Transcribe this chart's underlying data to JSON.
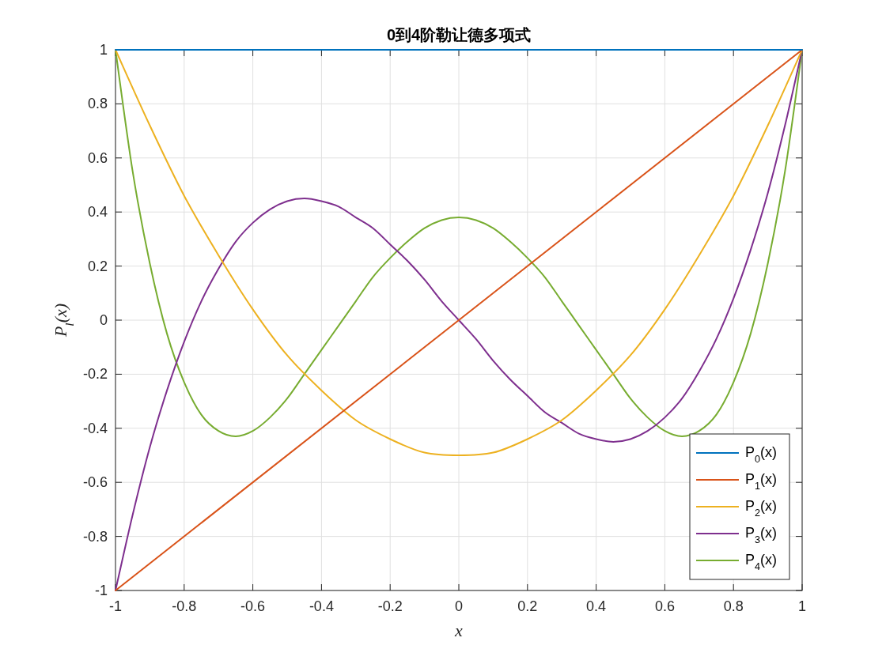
{
  "chart_data": {
    "type": "line",
    "title": "0到4阶勒让德多项式",
    "xlabel": "x",
    "ylabel": "P$_{l}$(x)",
    "xlim": [
      -1,
      1
    ],
    "ylim": [
      -1,
      1
    ],
    "xticks": [
      -1,
      -0.8,
      -0.6,
      -0.4,
      -0.2,
      0,
      0.2,
      0.4,
      0.6,
      0.8,
      1
    ],
    "yticks": [
      -1,
      -0.8,
      -0.6,
      -0.4,
      -0.2,
      0,
      0.2,
      0.4,
      0.6,
      0.8,
      1
    ],
    "grid": true,
    "legend": "bottom right",
    "series": [
      {
        "name": "P$_{0}$(x)",
        "color": "#0072bd",
        "x": [
          -1,
          1
        ],
        "values": [
          1,
          1
        ]
      },
      {
        "name": "P$_{1}$(x)",
        "color": "#d95319",
        "x": [
          -1,
          1
        ],
        "values": [
          -1,
          1
        ]
      },
      {
        "name": "P$_{2}$(x)",
        "color": "#edb120",
        "x": [
          -1,
          -0.9,
          -0.8,
          -0.7,
          -0.6,
          -0.5,
          -0.4,
          -0.3,
          -0.2,
          -0.1,
          0,
          0.1,
          0.2,
          0.3,
          0.4,
          0.5,
          0.6,
          0.7,
          0.8,
          0.9,
          1
        ],
        "values": [
          1,
          0.72,
          0.46,
          0.24,
          0.04,
          -0.13,
          -0.26,
          -0.37,
          -0.44,
          -0.49,
          -0.5,
          -0.49,
          -0.44,
          -0.37,
          -0.26,
          -0.13,
          0.04,
          0.24,
          0.46,
          0.72,
          1
        ]
      },
      {
        "name": "P$_{3}$(x)",
        "color": "#7e2f8e",
        "x": [
          -1,
          -0.95,
          -0.9,
          -0.85,
          -0.8,
          -0.75,
          -0.7,
          -0.65,
          -0.6,
          -0.55,
          -0.5,
          -0.45,
          -0.4,
          -0.35,
          -0.3,
          -0.25,
          -0.2,
          -0.15,
          -0.1,
          -0.05,
          0,
          0.05,
          0.1,
          0.15,
          0.2,
          0.25,
          0.3,
          0.35,
          0.4,
          0.45,
          0.5,
          0.55,
          0.6,
          0.65,
          0.7,
          0.75,
          0.8,
          0.85,
          0.9,
          0.95,
          1
        ],
        "values": [
          -1,
          -0.72,
          -0.47,
          -0.26,
          -0.08,
          0.07,
          0.19,
          0.29,
          0.36,
          0.41,
          0.44,
          0.45,
          0.44,
          0.42,
          0.38,
          0.34,
          0.28,
          0.22,
          0.15,
          0.07,
          0,
          -0.07,
          -0.15,
          -0.22,
          -0.28,
          -0.34,
          -0.38,
          -0.42,
          -0.44,
          -0.45,
          -0.44,
          -0.41,
          -0.36,
          -0.29,
          -0.19,
          -0.07,
          0.08,
          0.26,
          0.47,
          0.72,
          1
        ]
      },
      {
        "name": "P$_{4}$(x)",
        "color": "#77ac30",
        "x": [
          -1,
          -0.95,
          -0.9,
          -0.85,
          -0.8,
          -0.75,
          -0.7,
          -0.65,
          -0.6,
          -0.55,
          -0.5,
          -0.45,
          -0.4,
          -0.35,
          -0.3,
          -0.25,
          -0.2,
          -0.15,
          -0.1,
          -0.05,
          0,
          0.05,
          0.1,
          0.15,
          0.2,
          0.25,
          0.3,
          0.35,
          0.4,
          0.45,
          0.5,
          0.55,
          0.6,
          0.65,
          0.7,
          0.75,
          0.8,
          0.85,
          0.9,
          0.95,
          1
        ],
        "values": [
          1,
          0.55,
          0.21,
          -0.05,
          -0.23,
          -0.35,
          -0.41,
          -0.43,
          -0.41,
          -0.36,
          -0.29,
          -0.2,
          -0.11,
          -0.02,
          0.07,
          0.16,
          0.23,
          0.29,
          0.34,
          0.37,
          0.38,
          0.37,
          0.34,
          0.29,
          0.23,
          0.16,
          0.07,
          -0.02,
          -0.11,
          -0.2,
          -0.29,
          -0.36,
          -0.41,
          -0.43,
          -0.41,
          -0.35,
          -0.23,
          -0.05,
          0.21,
          0.55,
          1
        ]
      }
    ]
  }
}
